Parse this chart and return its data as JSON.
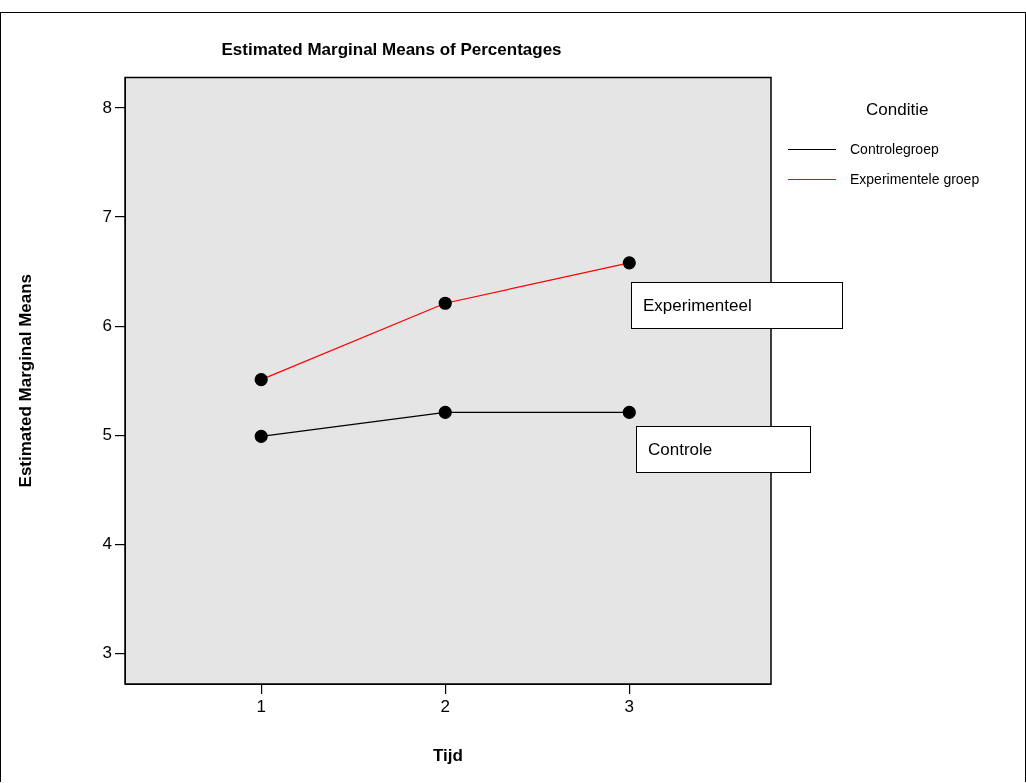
{
  "chart_data": {
    "type": "line",
    "title": "Estimated Marginal Means of Percentages",
    "xlabel": "Tijd",
    "ylabel": "Estimated Marginal Means",
    "legend_title": "Conditie",
    "x": [
      1,
      2,
      3
    ],
    "series": [
      {
        "name": "Controlegroep",
        "color": "#000000",
        "values": [
          4.99,
          5.21,
          5.21
        ]
      },
      {
        "name": "Experimentele groep",
        "color": "#ff0000",
        "values": [
          5.51,
          6.21,
          6.58
        ]
      }
    ],
    "xlim": [
      0.26,
      3.77
    ],
    "xticks": [
      1,
      2,
      3
    ],
    "ylim": [
      2.72,
      8.28
    ],
    "yticks": [
      3,
      4,
      5,
      6,
      7,
      8
    ],
    "grid": false,
    "legend": "top right",
    "marker": "circle",
    "line_style": "solid",
    "annotations": [
      "Experimenteel",
      "Controle"
    ]
  }
}
